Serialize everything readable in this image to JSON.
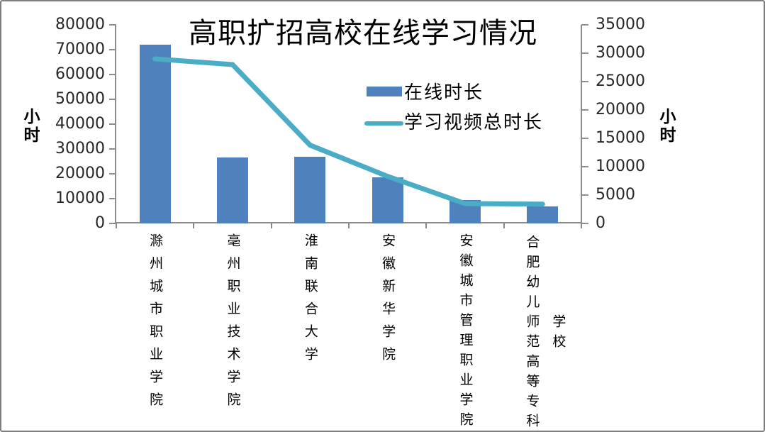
{
  "chart_data": {
    "type": "combo-bar-line",
    "title": "高职扩招高校在线学习情况",
    "categories": [
      "滁州城市职业学院",
      "亳州职业技术学院",
      "淮南联合大学",
      "安徽新华学院",
      "安徽城市管理职业学院",
      "合肥幼儿师范高等专科学校"
    ],
    "series": [
      {
        "name": "在线时长",
        "type": "bar",
        "axis": "left",
        "color": "#4f81bd",
        "values": [
          72000,
          26500,
          27000,
          18500,
          9500,
          7000
        ]
      },
      {
        "name": "学习视频总时长",
        "type": "line",
        "axis": "right",
        "color": "#4bacc6",
        "values": [
          29000,
          28000,
          13800,
          8300,
          3500,
          3400
        ]
      }
    ],
    "left_axis": {
      "title": "小时",
      "min": 0,
      "max": 80000,
      "step": 10000,
      "tick_labels": [
        "80000",
        "70000",
        "60000",
        "50000",
        "40000",
        "30000",
        "20000",
        "10000",
        "0"
      ]
    },
    "right_axis": {
      "title": "小时",
      "min": 0,
      "max": 35000,
      "step": 5000,
      "tick_labels": [
        "35000",
        "30000",
        "25000",
        "20000",
        "15000",
        "10000",
        "5000",
        "0"
      ]
    },
    "legend": {
      "position": "upper-center-right",
      "entries": [
        "在线时长",
        "学习视频总时长"
      ]
    },
    "grid": "off",
    "colors": {
      "axis": "#8c8c8c",
      "text": "#000000",
      "tick_text": "#262626",
      "frame_border": "#7f7f7f"
    }
  }
}
